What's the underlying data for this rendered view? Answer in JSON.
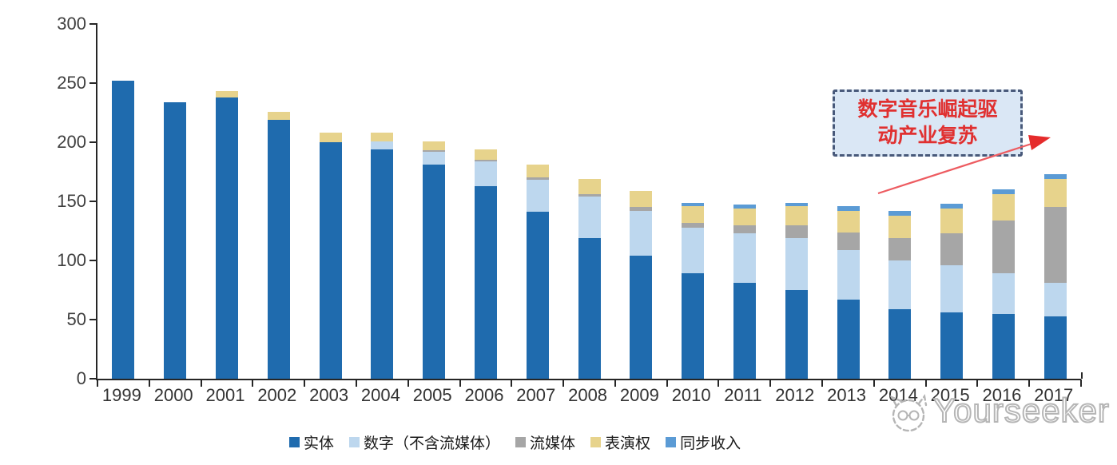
{
  "colors": {
    "physical": "#1F6BAE",
    "digital": "#BDD7EE",
    "streaming": "#A6A6A6",
    "performance": "#E7D38C",
    "sync": "#5B9BD5",
    "axis": "#262626",
    "annotation_fill": "#DAE7F5",
    "annotation_border": "#48597A",
    "annotation_text": "#E03030",
    "arrow": "#ED5B60",
    "watermark": "#B5B5B5"
  },
  "chart_data": {
    "type": "bar",
    "stacked": true,
    "title": "",
    "xlabel": "",
    "ylabel": "",
    "ylim": [
      0,
      300
    ],
    "yticks": [
      0,
      50,
      100,
      150,
      200,
      250,
      300
    ],
    "grid": false,
    "legend_position": "bottom",
    "categories": [
      "1999",
      "2000",
      "2001",
      "2002",
      "2003",
      "2004",
      "2005",
      "2006",
      "2007",
      "2008",
      "2009",
      "2010",
      "2011",
      "2012",
      "2013",
      "2014",
      "2015",
      "2016",
      "2017"
    ],
    "series": [
      {
        "name": "实体",
        "key": "physical",
        "color": "#1F6BAE",
        "values": [
          252,
          234,
          238,
          219,
          200,
          194,
          181,
          163,
          141,
          119,
          104,
          89,
          81,
          75,
          67,
          59,
          56,
          55,
          53
        ]
      },
      {
        "name": "数字（不含流媒体）",
        "key": "digital",
        "color": "#BDD7EE",
        "values": [
          0,
          0,
          0,
          0,
          0,
          7,
          11,
          21,
          27,
          35,
          38,
          39,
          42,
          44,
          42,
          41,
          40,
          34,
          28
        ]
      },
      {
        "name": "流媒体",
        "key": "streaming",
        "color": "#A6A6A6",
        "values": [
          0,
          0,
          0,
          0,
          0,
          0,
          1,
          1,
          2,
          2,
          3,
          4,
          7,
          11,
          15,
          19,
          27,
          45,
          64
        ]
      },
      {
        "name": "表演权",
        "key": "performance",
        "color": "#E7D38C",
        "values": [
          0,
          0,
          5,
          7,
          8,
          7,
          8,
          9,
          11,
          13,
          14,
          14,
          14,
          16,
          18,
          19,
          21,
          22,
          24
        ]
      },
      {
        "name": "同步收入",
        "key": "sync",
        "color": "#5B9BD5",
        "values": [
          0,
          0,
          0,
          0,
          0,
          0,
          0,
          0,
          0,
          0,
          0,
          3,
          3,
          3,
          4,
          4,
          4,
          4,
          4
        ]
      }
    ],
    "totals": [
      252,
      234,
      243,
      226,
      208,
      208,
      201,
      194,
      181,
      169,
      159,
      149,
      147,
      149,
      146,
      142,
      148,
      160,
      173
    ]
  },
  "annotation": {
    "line1": "数字音乐崛起驱",
    "line2": "动产业复苏"
  },
  "watermark": {
    "text": "Yourseeker"
  }
}
